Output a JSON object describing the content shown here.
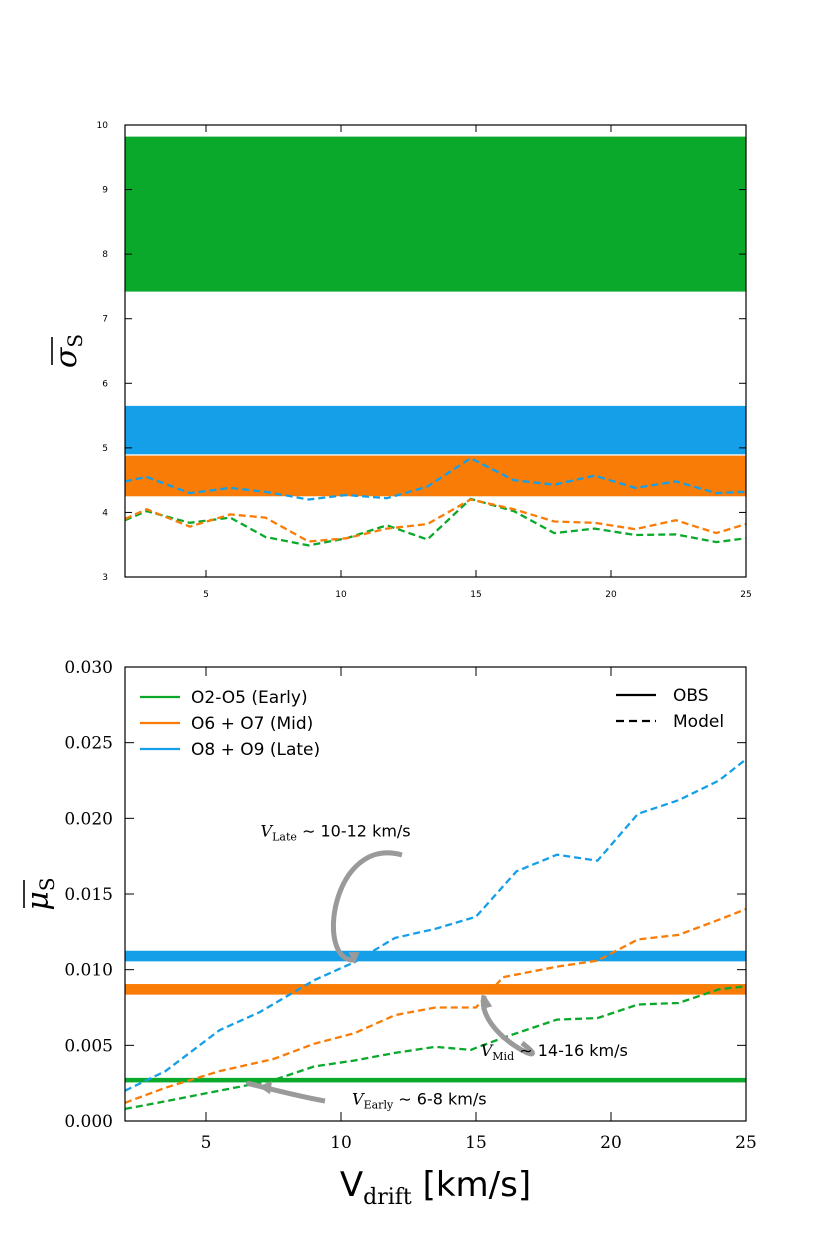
{
  "colors": {
    "early": "#0aa92c",
    "mid": "#f97c06",
    "late": "#159fe8",
    "axis": "#000000",
    "arrow": "#9a9a9a"
  },
  "chart_data": [
    {
      "type": "line",
      "ylabel": "σS",
      "xlim": [
        2,
        25
      ],
      "ylim": [
        3,
        10
      ],
      "xticks": [
        5,
        10,
        15,
        20,
        25
      ],
      "yticks": [
        3,
        4,
        5,
        6,
        7,
        8,
        9,
        10
      ],
      "obs_bands": [
        {
          "name": "O2-O5 (Early)",
          "color": "#0aa92c",
          "low": 7.42,
          "high": 9.82
        },
        {
          "name": "O8 + O9 (Late)",
          "color": "#159fe8",
          "low": 4.9,
          "high": 5.65
        },
        {
          "name": "O6 + O7 (Mid)",
          "color": "#f97c06",
          "low": 4.25,
          "high": 4.88
        }
      ],
      "series": [
        {
          "name": "O2-O5 (Early)",
          "color": "#0aa92c",
          "style": "dashed",
          "x": [
            2,
            2.8,
            4.4,
            5.9,
            7.2,
            8.8,
            10.2,
            11.7,
            13.2,
            14.8,
            16.4,
            17.9,
            19.4,
            20.9,
            22.4,
            23.9,
            25
          ],
          "y": [
            3.88,
            4.02,
            3.84,
            3.92,
            3.62,
            3.49,
            3.6,
            3.8,
            3.58,
            4.21,
            4.02,
            3.68,
            3.75,
            3.65,
            3.66,
            3.54,
            3.6
          ]
        },
        {
          "name": "O6 + O7 (Mid)",
          "color": "#f97c06",
          "style": "dashed",
          "x": [
            2,
            2.8,
            4.4,
            5.9,
            7.2,
            8.8,
            10.2,
            11.7,
            13.2,
            14.8,
            16.4,
            17.9,
            19.4,
            20.9,
            22.4,
            23.9,
            25
          ],
          "y": [
            3.9,
            4.05,
            3.78,
            3.97,
            3.92,
            3.55,
            3.6,
            3.75,
            3.82,
            4.2,
            4.05,
            3.86,
            3.84,
            3.74,
            3.88,
            3.68,
            3.82
          ]
        },
        {
          "name": "O8 + O9 (Late)",
          "color": "#159fe8",
          "style": "dashed",
          "x": [
            2,
            2.8,
            4.4,
            5.9,
            7.2,
            8.8,
            10.2,
            11.7,
            13.2,
            14.8,
            16.4,
            17.9,
            19.4,
            20.9,
            22.4,
            23.9,
            25
          ],
          "y": [
            4.48,
            4.55,
            4.3,
            4.38,
            4.32,
            4.2,
            4.27,
            4.22,
            4.4,
            4.84,
            4.5,
            4.43,
            4.57,
            4.38,
            4.48,
            4.3,
            4.32
          ]
        }
      ]
    },
    {
      "type": "line",
      "ylabel": "μS",
      "xlabel": "Vdrift [km/s]",
      "xlim": [
        2,
        25
      ],
      "ylim": [
        0,
        0.03
      ],
      "xticks": [
        5,
        10,
        15,
        20,
        25
      ],
      "yticks": [
        0.0,
        0.005,
        0.01,
        0.015,
        0.02,
        0.025,
        0.03
      ],
      "ytick_labels": [
        "0.000",
        "0.005",
        "0.010",
        "0.015",
        "0.020",
        "0.025",
        "0.030"
      ],
      "obs_lines": [
        {
          "name": "O2-O5 (Early)",
          "color": "#0aa92c",
          "y": 0.0027,
          "width": 0.0003
        },
        {
          "name": "O6 + O7 (Mid)",
          "color": "#f97c06",
          "y": 0.0087,
          "width": 0.0007
        },
        {
          "name": "O8 + O9 (Late)",
          "color": "#159fe8",
          "y": 0.0109,
          "width": 0.0007
        }
      ],
      "series": [
        {
          "name": "O2-O5 (Early)",
          "color": "#0aa92c",
          "style": "dashed",
          "x": [
            2,
            3.5,
            5.5,
            7.5,
            9,
            10.5,
            12,
            13.5,
            14.8,
            16,
            18,
            19.5,
            21,
            22.5,
            24,
            25
          ],
          "y": [
            0.0008,
            0.0013,
            0.002,
            0.0027,
            0.0036,
            0.004,
            0.0045,
            0.0049,
            0.0047,
            0.0055,
            0.0067,
            0.0068,
            0.0077,
            0.0078,
            0.0087,
            0.0089
          ]
        },
        {
          "name": "O6 + O7 (Mid)",
          "color": "#f97c06",
          "style": "dashed",
          "x": [
            2,
            3.5,
            5.5,
            7.5,
            9,
            10.5,
            12,
            13.5,
            15,
            16,
            18,
            19.5,
            21,
            22.5,
            24,
            25
          ],
          "y": [
            0.0012,
            0.0022,
            0.0033,
            0.0041,
            0.0051,
            0.0058,
            0.007,
            0.0075,
            0.0075,
            0.0095,
            0.0102,
            0.0106,
            0.012,
            0.0123,
            0.0133,
            0.014
          ]
        },
        {
          "name": "O8 + O9 (Late)",
          "color": "#159fe8",
          "style": "dashed",
          "x": [
            2,
            3.5,
            5.5,
            7,
            9,
            10.5,
            12,
            13.5,
            15,
            16.5,
            18,
            19.5,
            21,
            22.5,
            24,
            25
          ],
          "y": [
            0.002,
            0.0033,
            0.006,
            0.0072,
            0.0093,
            0.0105,
            0.0121,
            0.0127,
            0.0135,
            0.0165,
            0.0176,
            0.0172,
            0.0203,
            0.0212,
            0.0225,
            0.0239
          ]
        }
      ],
      "legend_entries": [
        {
          "label": "O2-O5 (Early)",
          "color": "#0aa92c"
        },
        {
          "label": "O6 + O7 (Mid)",
          "color": "#f97c06"
        },
        {
          "label": "O8 + O9 (Late)",
          "color": "#159fe8"
        }
      ],
      "style_legend": [
        {
          "label": "OBS",
          "style": "solid"
        },
        {
          "label": "Model",
          "style": "dashed"
        }
      ],
      "annotations": [
        {
          "v": "V",
          "sub": "Late",
          "text": " ∼ 10-12 km/s",
          "tx": 9.8,
          "ty": 0.0188,
          "ax": 10.5,
          "ay": 0.0105
        },
        {
          "v": "V",
          "sub": "Mid",
          "text": " ∼ 14-16 km/s",
          "tx": 17.9,
          "ty": 0.0043,
          "ax": 15.3,
          "ay": 0.0083
        },
        {
          "v": "V",
          "sub": "Early",
          "text": " ∼ 6-8 km/s",
          "tx": 12.9,
          "ty": 0.0011,
          "ax": 7.0,
          "ay": 0.0023
        }
      ]
    }
  ]
}
